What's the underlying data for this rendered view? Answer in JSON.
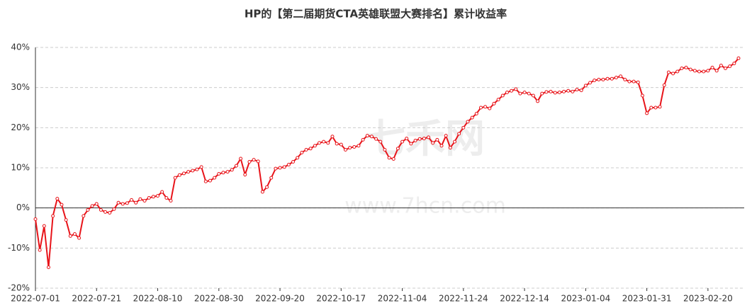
{
  "chart_data": {
    "type": "line",
    "title": "HP的【第二届期货CTA英雄联盟大赛排名】累计收益率",
    "watermark": "七禾网",
    "watermark_url": "www.7hcn.com",
    "categories": [
      "2022-07-01",
      null,
      null,
      null,
      null,
      null,
      null,
      null,
      null,
      null,
      null,
      null,
      null,
      null,
      "2022-07-21",
      null,
      null,
      null,
      null,
      null,
      null,
      null,
      null,
      null,
      null,
      null,
      null,
      null,
      "2022-08-10",
      null,
      null,
      null,
      null,
      null,
      null,
      null,
      null,
      null,
      null,
      null,
      null,
      null,
      "2022-08-30",
      null,
      null,
      null,
      null,
      null,
      null,
      null,
      null,
      null,
      null,
      null,
      null,
      null,
      "2022-09-20",
      null,
      null,
      null,
      null,
      null,
      null,
      null,
      null,
      null,
      null,
      null,
      null,
      null,
      "2022-10-17",
      null,
      null,
      null,
      null,
      null,
      null,
      null,
      null,
      null,
      null,
      null,
      null,
      null,
      "2022-11-04",
      null,
      null,
      null,
      null,
      null,
      null,
      null,
      null,
      null,
      null,
      null,
      null,
      null,
      "2022-11-24",
      null,
      null,
      null,
      null,
      null,
      null,
      null,
      null,
      null,
      null,
      null,
      null,
      null,
      "2022-12-14",
      null,
      null,
      null,
      null,
      null,
      null,
      null,
      null,
      null,
      null,
      null,
      null,
      null,
      "2023-01-04",
      null,
      null,
      null,
      null,
      null,
      null,
      null,
      null,
      null,
      null,
      null,
      null,
      null,
      "2023-01-31",
      null,
      null,
      null,
      null,
      null,
      null,
      null,
      null,
      null,
      null,
      null,
      null,
      null,
      "2023-02-20",
      null,
      null,
      null,
      null,
      null,
      null,
      null
    ],
    "series": [
      {
        "name": "累计收益率",
        "color": "#e8141a",
        "values": [
          -2.8,
          -10.5,
          -4.5,
          -14.8,
          -2,
          2.3,
          0.8,
          -3,
          -7,
          -6.5,
          -7.5,
          -2,
          -0.5,
          0.5,
          1,
          -0.5,
          -1,
          -1.2,
          -0.3,
          1.3,
          1,
          1.2,
          2,
          1.3,
          2.2,
          1.8,
          2.5,
          2.8,
          3,
          4,
          2.5,
          1.8,
          7.5,
          8.2,
          8.6,
          9,
          9.3,
          9.6,
          10.2,
          6.6,
          6.8,
          7.5,
          8.5,
          8.8,
          9,
          9.5,
          10.5,
          12.3,
          8.3,
          11.5,
          12,
          11.6,
          4,
          5.2,
          7.5,
          9.8,
          10,
          10.2,
          10.8,
          11.5,
          12.5,
          13.8,
          14.5,
          14.8,
          15.5,
          16.2,
          16.5,
          16.2,
          17.8,
          16,
          15.8,
          14.5,
          15,
          15.2,
          15.5,
          17,
          18,
          17.8,
          17.2,
          16.5,
          14.5,
          12.5,
          12.2,
          14.8,
          16.5,
          17.3,
          16,
          16.8,
          17.2,
          17.3,
          17.6,
          16.2,
          17,
          15.5,
          18,
          15,
          16.5,
          18.5,
          20,
          21.5,
          22.5,
          23.5,
          25,
          25.2,
          24.8,
          26,
          27,
          28,
          28.8,
          29.2,
          29.6,
          28.5,
          28.8,
          28.5,
          28,
          26.6,
          28.5,
          28.9,
          29,
          28.7,
          28.8,
          29,
          29.2,
          29,
          29.5,
          29.3,
          30.5,
          31.2,
          31.8,
          32,
          32,
          32.2,
          32.2,
          32.5,
          32.8,
          32,
          31.5,
          31.5,
          31.3,
          28,
          23.6,
          25,
          25,
          25.2,
          30.6,
          33.8,
          33.5,
          34,
          34.8,
          35,
          34.5,
          34.2,
          34,
          34,
          34.2,
          35,
          34.2,
          35.5,
          34.8,
          35.3,
          36,
          37.3
        ]
      }
    ],
    "ylim": [
      -20,
      40
    ],
    "yticks": [
      {
        "value": -20,
        "label": "-20%"
      },
      {
        "value": -10,
        "label": "-10%"
      },
      {
        "value": 0,
        "label": "0%"
      },
      {
        "value": 10,
        "label": "10%"
      },
      {
        "value": 20,
        "label": "20%"
      },
      {
        "value": 30,
        "label": "30%"
      },
      {
        "value": 40,
        "label": "40%"
      }
    ],
    "grid": true
  }
}
